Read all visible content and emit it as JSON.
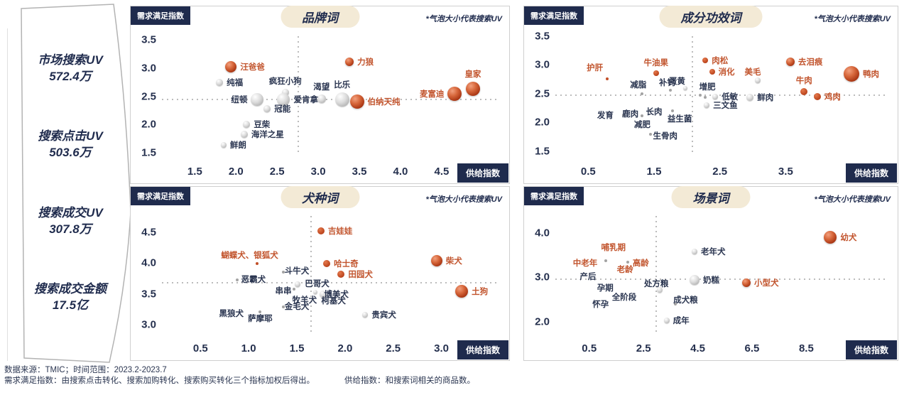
{
  "sidebar": {
    "metrics": [
      {
        "label": "市场搜索UV",
        "value": "572.4万"
      },
      {
        "label": "搜索点击UV",
        "value": "503.6万"
      },
      {
        "label": "搜索成交UV",
        "value": "307.8万"
      },
      {
        "label": "搜索成交金额",
        "value": "17.5亿"
      }
    ]
  },
  "footer": {
    "line1": "数据来源：TMIC；时间范围：2023.2-2023.7",
    "line2_left": "需求满足指数：由搜索点击转化、搜索加购转化、搜索购买转化三个指标加权后得出。",
    "line2_right": "供给指数：和搜索词相关的商品数。"
  },
  "colors": {
    "navy": "#1f2b4d",
    "orange": "#c2552e",
    "pill": "#f3ead6",
    "gray_bubble": "#bdbdbd"
  },
  "chart_data": [
    {
      "type": "scatter",
      "title": "品牌词",
      "ylabel": "需求满足指数",
      "xlabel": "供给指数",
      "note": "*气泡大小代表搜索UV",
      "x_ticks": [
        1.5,
        2.0,
        2.5,
        3.0,
        3.5,
        4.0,
        4.5
      ],
      "y_ticks": [
        3.5,
        3.0,
        2.5,
        2.0,
        1.5
      ],
      "x_range": [
        1.1,
        5.2
      ],
      "y_range": [
        1.38,
        3.62
      ],
      "crosshair": {
        "x": 2.75,
        "y": 2.45
      },
      "points": [
        {
          "label": "汪爸爸",
          "x": 1.94,
          "y": 3.02,
          "r": 8,
          "c": "o",
          "lp": "right"
        },
        {
          "label": "纯福",
          "x": 1.8,
          "y": 2.75,
          "r": 5,
          "c": "g",
          "lp": "right"
        },
        {
          "label": "疯狂小狗",
          "x": 2.6,
          "y": 2.57,
          "r": 5,
          "c": "g",
          "lp": "top"
        },
        {
          "label": "力狼",
          "x": 3.38,
          "y": 3.12,
          "r": 6,
          "c": "o",
          "lp": "right"
        },
        {
          "label": "纽顿",
          "x": 2.26,
          "y": 2.44,
          "r": 9,
          "c": "g",
          "lp": "left"
        },
        {
          "label": "爱肯拿",
          "x": 2.58,
          "y": 2.44,
          "r": 9,
          "c": "g",
          "lp": "right"
        },
        {
          "label": "渴望",
          "x": 3.04,
          "y": 2.46,
          "r": 6,
          "c": "g",
          "lp": "top"
        },
        {
          "label": "比乐",
          "x": 3.29,
          "y": 2.44,
          "r": 10,
          "c": "g",
          "lp": "top"
        },
        {
          "label": "伯纳天纯",
          "x": 3.47,
          "y": 2.41,
          "r": 10,
          "c": "o",
          "lp": "right"
        },
        {
          "label": "冠能",
          "x": 2.38,
          "y": 2.28,
          "r": 5,
          "c": "g",
          "lp": "right"
        },
        {
          "label": "豆柴",
          "x": 2.13,
          "y": 2.0,
          "r": 5,
          "c": "g",
          "lp": "right"
        },
        {
          "label": "海洋之星",
          "x": 2.1,
          "y": 1.82,
          "r": 5,
          "c": "g",
          "lp": "right"
        },
        {
          "label": "鲜朗",
          "x": 1.85,
          "y": 1.63,
          "r": 4,
          "c": "g",
          "lp": "right"
        },
        {
          "label": "麦富迪",
          "x": 4.66,
          "y": 2.54,
          "r": 10,
          "c": "o",
          "lp": "left"
        },
        {
          "label": "皇家",
          "x": 4.88,
          "y": 2.63,
          "r": 10,
          "c": "o",
          "lp": "top"
        }
      ]
    },
    {
      "type": "scatter",
      "title": "成分功效词",
      "ylabel": "需求满足指数",
      "xlabel": "供给指数",
      "note": "*气泡大小代表搜索UV",
      "x_ticks": [
        0.5,
        1.5,
        2.5,
        3.5
      ],
      "y_ticks": [
        3.5,
        3.0,
        2.5,
        2.0,
        1.5
      ],
      "x_range": [
        0.0,
        5.05
      ],
      "y_range": [
        1.36,
        3.55
      ],
      "crosshair": {
        "x": 2.07,
        "y": 2.49
      },
      "points": [
        {
          "label": "护肝",
          "x": 0.6,
          "y": 2.95,
          "r": 0,
          "c": "o",
          "lp": "center"
        },
        {
          "label": "",
          "x": 0.79,
          "y": 2.76,
          "r": 2,
          "c": "o"
        },
        {
          "label": "牛油果",
          "x": 1.53,
          "y": 2.86,
          "r": 4,
          "c": "o",
          "lp": "top"
        },
        {
          "label": "减脂",
          "x": 1.26,
          "y": 2.66,
          "r": 0,
          "c": "g",
          "lp": "center"
        },
        {
          "label": "",
          "x": 1.32,
          "y": 2.5,
          "r": 2,
          "c": "g"
        },
        {
          "label": "补钙",
          "x": 1.7,
          "y": 2.7,
          "r": 0,
          "c": "g",
          "lp": "center"
        },
        {
          "label": "",
          "x": 1.75,
          "y": 2.56,
          "r": 2,
          "c": "g"
        },
        {
          "label": "蛋黄",
          "x": 1.85,
          "y": 2.72,
          "r": 0,
          "c": "g",
          "lp": "center"
        },
        {
          "label": "",
          "x": 1.97,
          "y": 2.6,
          "r": 3,
          "c": "g"
        },
        {
          "label": "肉松",
          "x": 2.28,
          "y": 3.08,
          "r": 4,
          "c": "o",
          "lp": "right"
        },
        {
          "label": "消化",
          "x": 2.38,
          "y": 2.88,
          "r": 4,
          "c": "o",
          "lp": "right"
        },
        {
          "label": "美毛",
          "x": 3.0,
          "y": 2.88,
          "r": 0,
          "c": "o",
          "lp": "center"
        },
        {
          "label": "",
          "x": 3.08,
          "y": 2.73,
          "r": 4,
          "c": "g"
        },
        {
          "label": "去泪痕",
          "x": 3.57,
          "y": 3.06,
          "r": 6,
          "c": "o",
          "lp": "right"
        },
        {
          "label": "鸭肉",
          "x": 4.5,
          "y": 2.85,
          "r": 11,
          "c": "o",
          "lp": "right"
        },
        {
          "label": "牛肉",
          "x": 3.78,
          "y": 2.53,
          "r": 5,
          "c": "o",
          "lp": "top"
        },
        {
          "label": "鸡肉",
          "x": 3.98,
          "y": 2.45,
          "r": 5,
          "c": "o",
          "lp": "right"
        },
        {
          "label": "增肥",
          "x": 2.31,
          "y": 2.62,
          "r": 0,
          "c": "g",
          "lp": "center"
        },
        {
          "label": "",
          "x": 2.2,
          "y": 2.47,
          "r": 2,
          "c": "g"
        },
        {
          "label": "",
          "x": 2.28,
          "y": 2.44,
          "r": 2,
          "c": "g"
        },
        {
          "label": "低敏",
          "x": 2.43,
          "y": 2.45,
          "r": 4,
          "c": "g",
          "lp": "right"
        },
        {
          "label": "鲜肉",
          "x": 2.96,
          "y": 2.44,
          "r": 5,
          "c": "g",
          "lp": "right"
        },
        {
          "label": "三文鱼",
          "x": 2.3,
          "y": 2.3,
          "r": 4,
          "c": "g",
          "lp": "right"
        },
        {
          "label": "发育",
          "x": 0.76,
          "y": 2.13,
          "r": 0,
          "c": "g",
          "lp": "center"
        },
        {
          "label": "",
          "x": 1.04,
          "y": 2.13,
          "r": 2,
          "c": "g"
        },
        {
          "label": "鹿肉",
          "x": 1.14,
          "y": 2.15,
          "r": 0,
          "c": "g",
          "lp": "center"
        },
        {
          "label": "",
          "x": 1.32,
          "y": 2.12,
          "r": 2,
          "c": "g"
        },
        {
          "label": "长肉",
          "x": 1.5,
          "y": 2.19,
          "r": 0,
          "c": "g",
          "lp": "center"
        },
        {
          "label": "减肥",
          "x": 1.32,
          "y": 1.97,
          "r": 0,
          "c": "g",
          "lp": "center"
        },
        {
          "label": "益生菌",
          "x": 1.89,
          "y": 2.06,
          "r": 0,
          "c": "g",
          "lp": "center"
        },
        {
          "label": "",
          "x": 1.78,
          "y": 2.2,
          "r": 2,
          "c": "g"
        },
        {
          "label": "生骨肉",
          "x": 1.67,
          "y": 1.77,
          "r": 0,
          "c": "g",
          "lp": "center"
        },
        {
          "label": "",
          "x": 1.45,
          "y": 1.79,
          "r": 2,
          "c": "g"
        }
      ]
    },
    {
      "type": "scatter",
      "title": "犬种词",
      "ylabel": "需求满足指数",
      "xlabel": "供给指数",
      "note": "*气泡大小代表搜索UV",
      "x_ticks": [
        0.5,
        1.0,
        1.5,
        2.0,
        2.5,
        3.0
      ],
      "y_ticks": [
        4.5,
        4.0,
        3.5,
        3.0
      ],
      "x_range": [
        0.1,
        3.6
      ],
      "y_range": [
        2.82,
        4.8
      ],
      "crosshair": {
        "x": 1.64,
        "y": 3.69
      },
      "points": [
        {
          "label": "吉娃娃",
          "x": 1.75,
          "y": 4.52,
          "r": 5,
          "c": "o",
          "lp": "right"
        },
        {
          "label": "蝴蝶犬、银狐犬",
          "x": 1.01,
          "y": 4.13,
          "r": 0,
          "c": "o",
          "lp": "center"
        },
        {
          "label": "",
          "x": 1.09,
          "y": 3.99,
          "r": 2,
          "c": "o"
        },
        {
          "label": "哈士奇",
          "x": 1.81,
          "y": 3.99,
          "r": 5,
          "c": "o",
          "lp": "right"
        },
        {
          "label": "田园犬",
          "x": 1.96,
          "y": 3.82,
          "r": 5,
          "c": "o",
          "lp": "right"
        },
        {
          "label": "柴犬",
          "x": 2.95,
          "y": 4.04,
          "r": 8,
          "c": "o",
          "lp": "right"
        },
        {
          "label": "土狗",
          "x": 3.21,
          "y": 3.54,
          "r": 9,
          "c": "o",
          "lp": "right"
        },
        {
          "label": "斗牛犬",
          "x": 1.5,
          "y": 3.88,
          "r": 0,
          "c": "g",
          "lp": "center"
        },
        {
          "label": "",
          "x": 1.36,
          "y": 3.86,
          "r": 2,
          "c": "g"
        },
        {
          "label": "恶霸犬",
          "x": 1.05,
          "y": 3.74,
          "r": 0,
          "c": "g",
          "lp": "center"
        },
        {
          "label": "",
          "x": 0.88,
          "y": 3.73,
          "r": 2,
          "c": "g"
        },
        {
          "label": "巴哥犬",
          "x": 1.71,
          "y": 3.67,
          "r": 0,
          "c": "g",
          "lp": "center"
        },
        {
          "label": "",
          "x": 1.51,
          "y": 3.66,
          "r": 4,
          "c": "g"
        },
        {
          "label": "串串",
          "x": 1.36,
          "y": 3.56,
          "r": 0,
          "c": "g",
          "lp": "center"
        },
        {
          "label": "",
          "x": 1.47,
          "y": 3.58,
          "r": 2,
          "c": "g"
        },
        {
          "label": "博美犬",
          "x": 1.91,
          "y": 3.5,
          "r": 0,
          "c": "g",
          "lp": "center"
        },
        {
          "label": "",
          "x": 1.77,
          "y": 3.5,
          "r": 5,
          "c": "g"
        },
        {
          "label": "",
          "x": 1.69,
          "y": 3.53,
          "r": 3,
          "c": "g"
        },
        {
          "label": "牧羊犬",
          "x": 1.58,
          "y": 3.41,
          "r": 0,
          "c": "g",
          "lp": "center"
        },
        {
          "label": "柯基犬",
          "x": 1.88,
          "y": 3.39,
          "r": 0,
          "c": "g",
          "lp": "center"
        },
        {
          "label": "金毛犬",
          "x": 1.5,
          "y": 3.3,
          "r": 0,
          "c": "g",
          "lp": "center"
        },
        {
          "label": "",
          "x": 1.36,
          "y": 3.29,
          "r": 2,
          "c": "g"
        },
        {
          "label": "黑狼犬",
          "x": 0.82,
          "y": 3.19,
          "r": 0,
          "c": "g",
          "lp": "center"
        },
        {
          "label": "萨摩耶",
          "x": 1.12,
          "y": 3.11,
          "r": 0,
          "c": "g",
          "lp": "center"
        },
        {
          "label": "",
          "x": 1.12,
          "y": 3.21,
          "r": 2,
          "c": "g"
        },
        {
          "label": "贵宾犬",
          "x": 2.21,
          "y": 3.17,
          "r": 4,
          "c": "g",
          "lp": "right"
        }
      ]
    },
    {
      "type": "scatter",
      "title": "场景词",
      "ylabel": "需求满足指数",
      "xlabel": "供给指数",
      "note": "*气泡大小代表搜索UV",
      "x_ticks": [
        0.5,
        2.5,
        4.5,
        6.5,
        8.5
      ],
      "y_ticks": [
        4.0,
        3.0,
        2.0
      ],
      "x_range": [
        -0.75,
        11.5
      ],
      "y_range": [
        1.68,
        4.43
      ],
      "crosshair": {
        "x": 2.95,
        "y": 2.97
      },
      "points": [
        {
          "label": "幼犬",
          "x": 9.39,
          "y": 3.9,
          "r": 9,
          "c": "o",
          "lp": "right"
        },
        {
          "label": "老年犬",
          "x": 4.38,
          "y": 3.59,
          "r": 4,
          "c": "g",
          "lp": "right"
        },
        {
          "label": "哺乳期",
          "x": 1.39,
          "y": 3.68,
          "r": 0,
          "c": "o",
          "lp": "center"
        },
        {
          "label": "",
          "x": 1.11,
          "y": 3.38,
          "r": 2,
          "c": "g"
        },
        {
          "label": "中老年",
          "x": 0.35,
          "y": 3.32,
          "r": 0,
          "c": "o",
          "lp": "center"
        },
        {
          "label": "高龄",
          "x": 2.4,
          "y": 3.33,
          "r": 0,
          "c": "o",
          "lp": "center"
        },
        {
          "label": "",
          "x": 1.93,
          "y": 3.35,
          "r": 2,
          "c": "g"
        },
        {
          "label": "老龄",
          "x": 1.82,
          "y": 3.19,
          "r": 0,
          "c": "o",
          "lp": "center"
        },
        {
          "label": "产后",
          "x": 0.45,
          "y": 3.03,
          "r": 0,
          "c": "g",
          "lp": "center"
        },
        {
          "label": "处方粮",
          "x": 2.97,
          "y": 2.86,
          "r": 0,
          "c": "g",
          "lp": "center"
        },
        {
          "label": "",
          "x": 3.1,
          "y": 2.72,
          "r": 4,
          "c": "g"
        },
        {
          "label": "奶糕",
          "x": 4.38,
          "y": 2.94,
          "r": 7,
          "c": "g",
          "lp": "right"
        },
        {
          "label": "小型犬",
          "x": 6.29,
          "y": 2.88,
          "r": 6,
          "c": "o",
          "lp": "right"
        },
        {
          "label": "孕期",
          "x": 1.09,
          "y": 2.76,
          "r": 0,
          "c": "g",
          "lp": "center"
        },
        {
          "label": "全阶段",
          "x": 1.79,
          "y": 2.56,
          "r": 0,
          "c": "g",
          "lp": "center"
        },
        {
          "label": "怀孕",
          "x": 0.92,
          "y": 2.4,
          "r": 0,
          "c": "g",
          "lp": "center"
        },
        {
          "label": "成犬粮",
          "x": 4.05,
          "y": 2.49,
          "r": 0,
          "c": "g",
          "lp": "center"
        },
        {
          "label": "",
          "x": 3.68,
          "y": 2.4,
          "r": 2,
          "c": "g"
        },
        {
          "label": "成年",
          "x": 3.35,
          "y": 2.03,
          "r": 4,
          "c": "g",
          "lp": "right"
        }
      ]
    }
  ]
}
